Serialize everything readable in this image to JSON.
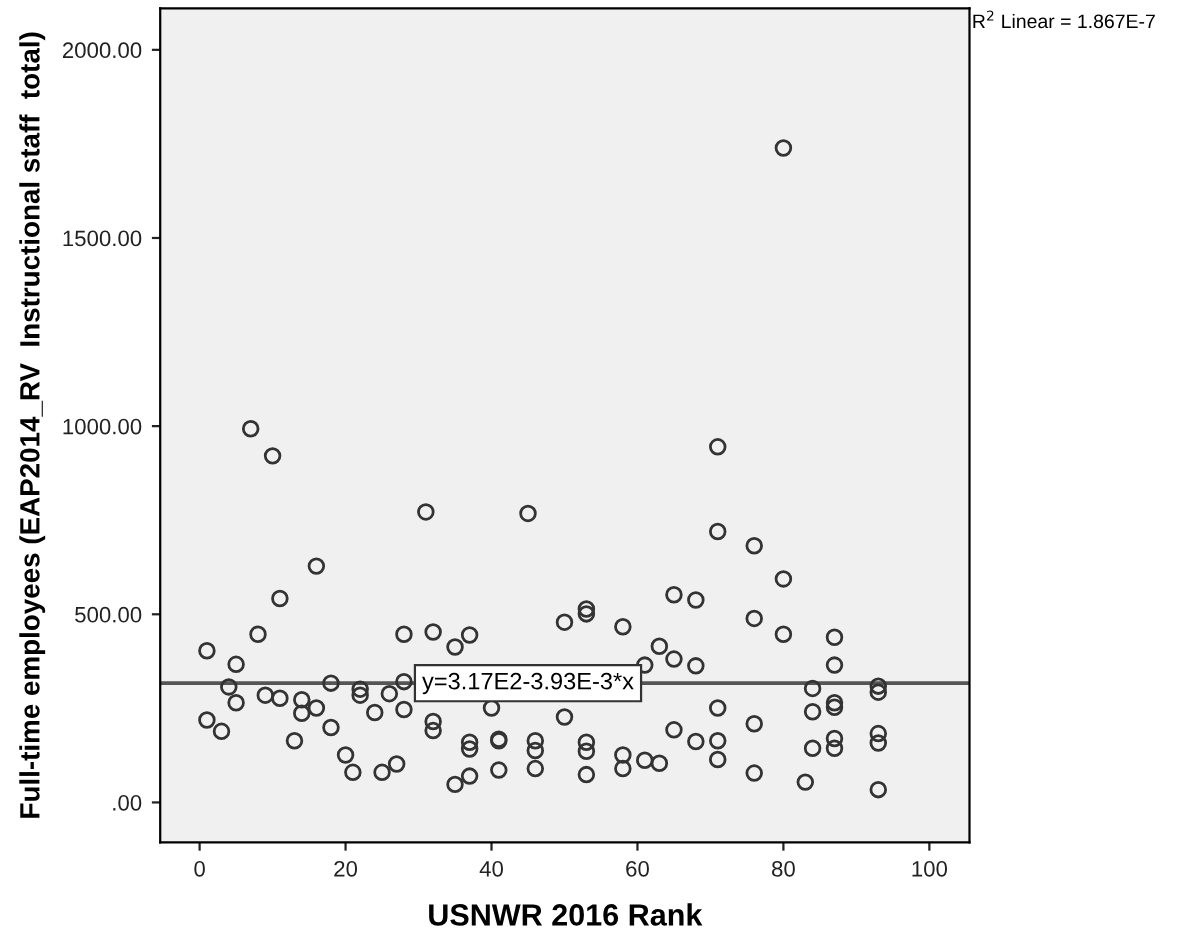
{
  "chart_data": {
    "type": "scatter",
    "xlabel": "USNWR 2016 Rank",
    "ylabel": "Full-time employees (EAP2014_RV  Instructional staff  total)",
    "xlim": [
      -5.4,
      105.5
    ],
    "ylim": [
      -106,
      2110
    ],
    "xticks": [
      0,
      20,
      40,
      60,
      80,
      100
    ],
    "yticks": [
      {
        "value": 0,
        "label": ".00"
      },
      {
        "value": 500,
        "label": "500.00"
      },
      {
        "value": 1000,
        "label": "1000.00"
      },
      {
        "value": 1500,
        "label": "1500.00"
      },
      {
        "value": 2000,
        "label": "2000.00"
      }
    ],
    "grid": false,
    "legend": false,
    "marker": "circle",
    "series": [
      {
        "color": "#333333",
        "x": [
          1,
          1,
          3,
          4,
          5,
          5,
          7,
          8,
          9,
          10,
          11,
          11,
          13,
          14,
          14,
          16,
          16,
          18,
          18,
          20,
          21,
          22,
          22,
          24,
          25,
          26,
          27,
          28,
          28,
          28,
          31,
          32,
          32,
          32,
          35,
          35,
          37,
          37,
          37,
          37,
          40,
          41,
          41,
          41,
          45,
          46,
          46,
          46,
          50,
          50,
          53,
          53,
          53,
          53,
          53,
          58,
          58,
          58,
          61,
          61,
          63,
          63,
          65,
          65,
          65,
          68,
          68,
          68,
          71,
          71,
          71,
          71,
          71,
          76,
          76,
          76,
          76,
          80,
          80,
          80,
          83,
          84,
          84,
          84,
          87,
          87,
          87,
          87,
          87,
          87,
          93,
          93,
          93,
          93,
          93
        ],
        "values": [
          403,
          219,
          189,
          307,
          367,
          265,
          993,
          447,
          285,
          921,
          542,
          277,
          164,
          273,
          237,
          628,
          251,
          317,
          199,
          126,
          80,
          301,
          285,
          239,
          80,
          289,
          102,
          321,
          247,
          447,
          772,
          453,
          215,
          191,
          413,
          48,
          445,
          160,
          142,
          70,
          251,
          168,
          164,
          86,
          768,
          164,
          138,
          90,
          479,
          227,
          514,
          501,
          160,
          136,
          74,
          467,
          126,
          90,
          365,
          112,
          415,
          104,
          552,
          381,
          193,
          538,
          363,
          162,
          945,
          720,
          251,
          164,
          114,
          682,
          489,
          209,
          78,
          1739,
          594,
          447,
          54,
          303,
          241,
          144,
          439,
          365,
          265,
          253,
          170,
          144,
          309,
          293,
          183,
          158,
          34
        ]
      },
      {
        "type": "line",
        "marker": "none",
        "color": "#555555",
        "x": [
          -5.4,
          105.5
        ],
        "values": [
          317,
          317
        ]
      }
    ],
    "annotations": [
      {
        "text": "y=3.17E2-3.93E-3*x",
        "x": 45,
        "y": 317
      },
      "R$^{2}$ Linear = 1.867E-7"
    ]
  }
}
